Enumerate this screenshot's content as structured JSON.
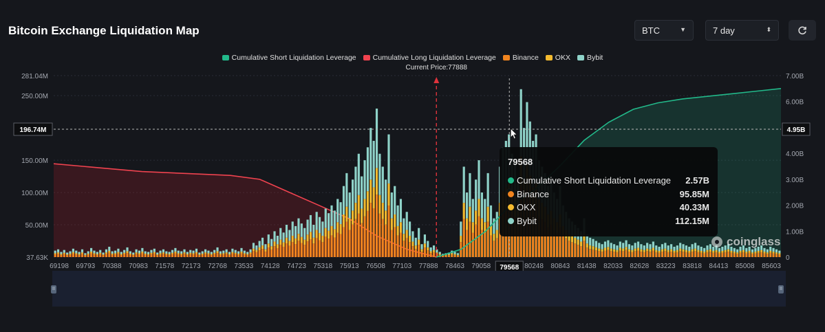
{
  "header": {
    "title": "Bitcoin Exchange Liquidation Map",
    "symbol_select": "BTC",
    "period_select": "7 day"
  },
  "legend": [
    {
      "label": "Cumulative Short Liquidation Leverage",
      "color": "#22b98a"
    },
    {
      "label": "Cumulative Long Liquidation Leverage",
      "color": "#f0434f"
    },
    {
      "label": "Binance",
      "color": "#f0841f"
    },
    {
      "label": "OKX",
      "color": "#f3ba2f"
    },
    {
      "label": "Bybit",
      "color": "#8fd3c9"
    }
  ],
  "current_price_label": "Current Price:77888",
  "crosshair": {
    "left_label": "196.74M",
    "right_label": "4.95B",
    "x_label": "79568"
  },
  "tooltip": {
    "title": "79568",
    "rows": [
      {
        "label": "Cumulative Short Liquidation Leverage",
        "value": "2.57B",
        "color": "#22b98a"
      },
      {
        "label": "Binance",
        "value": "95.85M",
        "color": "#f0841f"
      },
      {
        "label": "OKX",
        "value": "40.33M",
        "color": "#f3ba2f"
      },
      {
        "label": "Bybit",
        "value": "112.15M",
        "color": "#8fd3c9"
      }
    ]
  },
  "watermark": "coinglass",
  "chart_data": {
    "type": "bar",
    "x_ticks": [
      "69198",
      "69793",
      "70388",
      "70983",
      "71578",
      "72173",
      "72768",
      "73533",
      "74128",
      "74723",
      "75318",
      "75913",
      "76508",
      "77103",
      "77888",
      "78463",
      "79058",
      "79568",
      "80248",
      "80843",
      "81438",
      "82033",
      "82628",
      "83223",
      "83818",
      "84413",
      "85008",
      "85603"
    ],
    "y_left_ticks": [
      "37.63K",
      "50.00M",
      "100.00M",
      "150.00M",
      "250.00M",
      "281.04M"
    ],
    "y_right_ticks": [
      "0",
      "1.00B",
      "2.00B",
      "3.00B",
      "4.00B",
      "5.00B",
      "6.00B",
      "7.00B"
    ],
    "y_left_range": [
      0,
      281040000
    ],
    "y_right_range": [
      0,
      7000000000
    ],
    "current_price": 77888,
    "crosshair_price": 79568,
    "bar_heights_M": [
      10,
      12,
      8,
      11,
      7,
      9,
      13,
      10,
      8,
      12,
      6,
      9,
      14,
      10,
      8,
      11,
      7,
      12,
      16,
      9,
      10,
      13,
      8,
      11,
      15,
      9,
      7,
      12,
      10,
      14,
      9,
      8,
      11,
      13,
      7,
      10,
      12,
      9,
      8,
      11,
      14,
      10,
      9,
      12,
      8,
      11,
      10,
      13,
      7,
      9,
      12,
      10,
      8,
      11,
      15,
      9,
      10,
      12,
      8,
      13,
      11,
      9,
      14,
      10,
      8,
      12,
      22,
      18,
      25,
      30,
      20,
      35,
      28,
      40,
      33,
      45,
      38,
      50,
      42,
      55,
      48,
      60,
      52,
      45,
      58,
      65,
      50,
      70,
      62,
      55,
      75,
      68,
      80,
      72,
      90,
      85,
      110,
      130,
      100,
      120,
      140,
      160,
      125,
      150,
      170,
      200,
      180,
      230,
      160,
      140,
      120,
      190,
      100,
      110,
      80,
      90,
      60,
      70,
      55,
      40,
      30,
      45,
      20,
      35,
      25,
      15,
      18,
      12,
      8,
      5,
      6,
      7,
      10,
      8,
      6,
      55,
      140,
      100,
      130,
      90,
      120,
      150,
      100,
      90,
      130,
      80,
      60,
      70,
      140,
      170,
      180,
      190,
      160,
      150,
      120,
      260,
      200,
      240,
      210,
      180,
      190,
      150,
      140,
      130,
      110,
      120,
      100,
      90,
      110,
      80,
      70,
      60,
      55,
      50,
      45,
      40,
      60,
      35,
      30,
      28,
      25,
      22,
      20,
      24,
      26,
      22,
      20,
      18,
      24,
      22,
      26,
      20,
      18,
      22,
      24,
      20,
      18,
      22,
      20,
      24,
      18,
      16,
      20,
      22,
      18,
      20,
      16,
      18,
      22,
      20,
      18,
      16,
      20,
      22,
      18,
      16,
      14,
      18,
      20,
      16,
      18,
      14,
      16,
      18,
      20,
      16,
      14,
      12,
      16,
      18,
      14,
      16,
      12,
      14,
      16,
      18,
      14,
      12,
      16,
      14,
      12,
      10
    ],
    "cumulative_long_B": [
      3.6,
      3.5,
      3.4,
      3.3,
      3.25,
      3.2,
      3.15,
      3.0,
      2.5,
      2.0,
      1.5,
      0.8,
      0.3,
      0.0
    ],
    "cumulative_short_B": [
      0.0,
      0.3,
      1.0,
      2.0,
      2.6,
      3.5,
      4.5,
      5.2,
      5.7,
      5.95,
      6.1,
      6.2,
      6.3,
      6.4,
      6.5
    ]
  }
}
